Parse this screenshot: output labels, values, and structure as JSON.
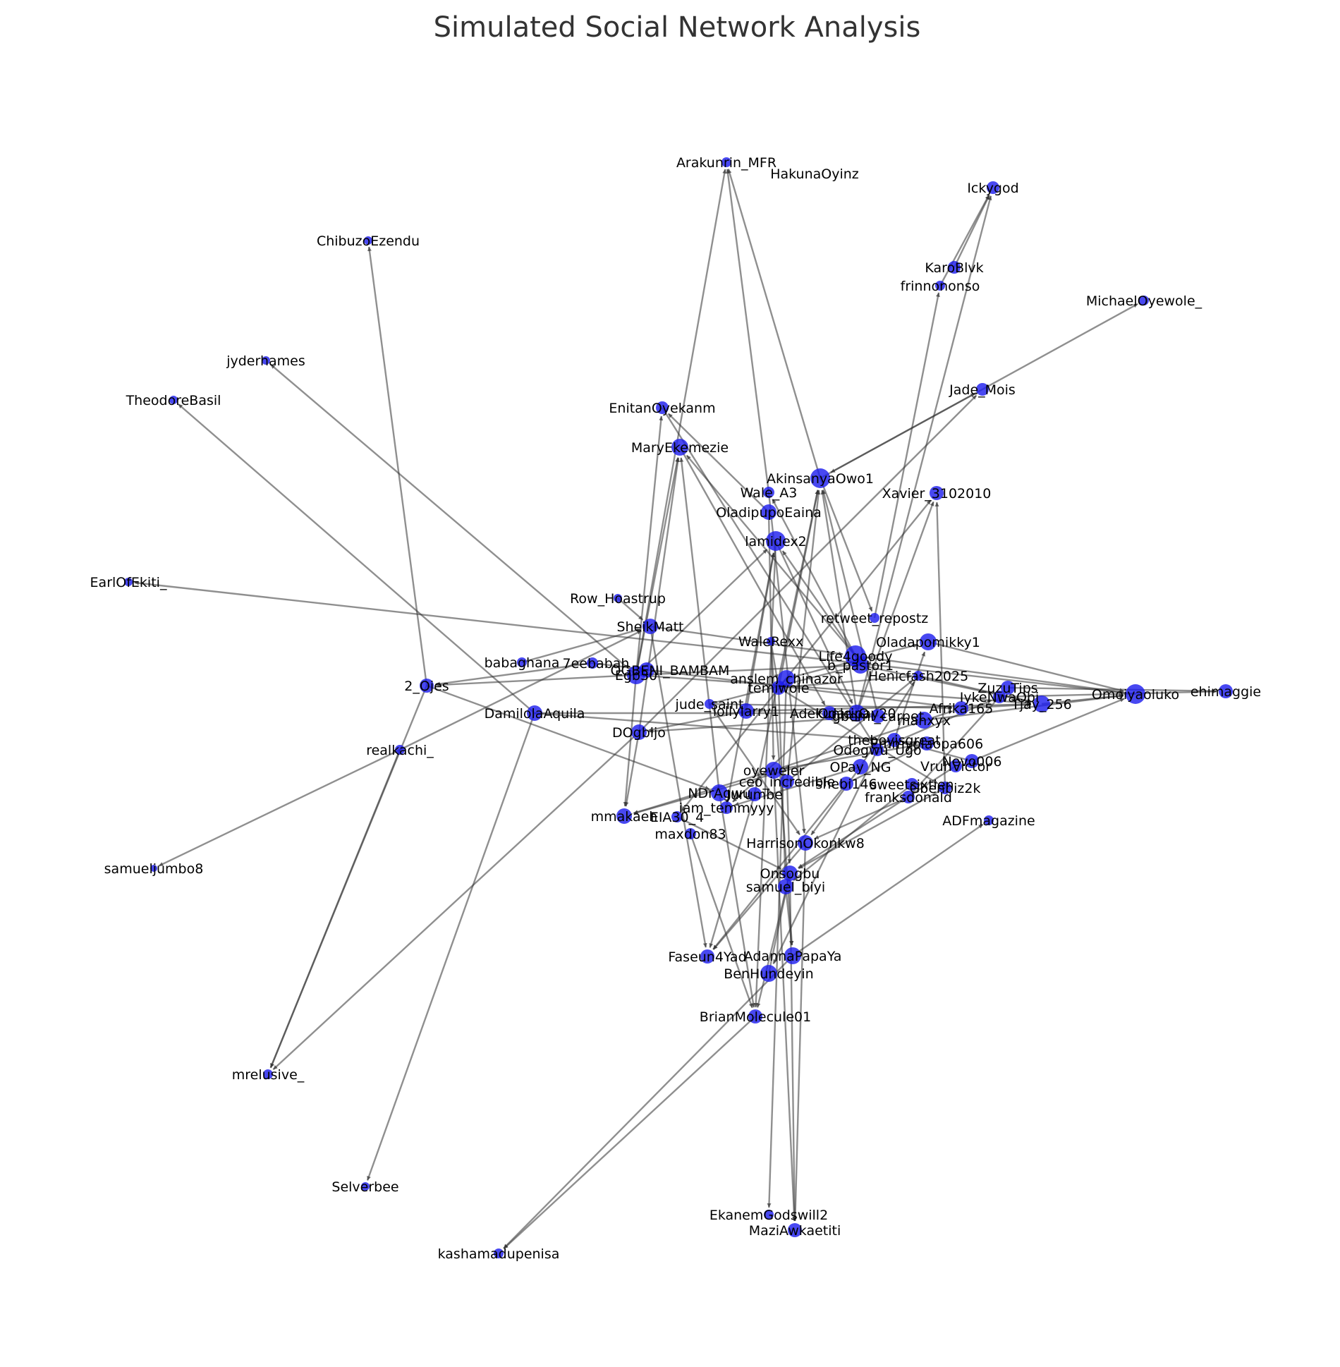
{
  "title": "Simulated Social Network Analysis",
  "colors": {
    "node": "#1a1aee",
    "edge": "#333333",
    "title": "#333333",
    "background": "#ffffff"
  },
  "nodes": [
    {
      "id": "Arakunrin_MFR"
    },
    {
      "id": "HakunaOyinz"
    },
    {
      "id": "Ickygod"
    },
    {
      "id": "ChibuzoEzendu"
    },
    {
      "id": "KaroBlvk"
    },
    {
      "id": "frinnononso"
    },
    {
      "id": "MichaelOyewole_"
    },
    {
      "id": "jyderhames"
    },
    {
      "id": "TheodoreBasil"
    },
    {
      "id": "Jade_Mois"
    },
    {
      "id": "EnitanOyekanm"
    },
    {
      "id": "MaryEkemezie"
    },
    {
      "id": "AkinsanyaOwo1"
    },
    {
      "id": "Wale_A3"
    },
    {
      "id": "Xavier_3102010"
    },
    {
      "id": "OladipupoEaina"
    },
    {
      "id": "lamidex2"
    },
    {
      "id": "EarlOfEkiti_"
    },
    {
      "id": "Row_Hoastrup"
    },
    {
      "id": "SheikMatt"
    },
    {
      "id": "retweet_repostz"
    },
    {
      "id": "WaleRexx"
    },
    {
      "id": "Oladapomikky1"
    },
    {
      "id": "babaghana"
    },
    {
      "id": "7eebabah"
    },
    {
      "id": "OGBENI_BAMBAM"
    },
    {
      "id": "Egb30"
    },
    {
      "id": "Life4goody"
    },
    {
      "id": "b_pastor1"
    },
    {
      "id": "anslem_chinazor"
    },
    {
      "id": "temiwole"
    },
    {
      "id": "Henicfash2025"
    },
    {
      "id": "IykeNwaObi"
    },
    {
      "id": "ZuzuTips"
    },
    {
      "id": "ehimaggie"
    },
    {
      "id": "Omoiyaoluko"
    },
    {
      "id": "Tjay_256"
    },
    {
      "id": "2_Ojes"
    },
    {
      "id": "DamilolaAquila"
    },
    {
      "id": "jude_saint"
    },
    {
      "id": "lollylarry1"
    },
    {
      "id": "Adekunle_O"
    },
    {
      "id": "Odaripay20"
    },
    {
      "id": "gbemi_carpet"
    },
    {
      "id": "manxyx"
    },
    {
      "id": "Afrika165"
    },
    {
      "id": "DOgbijo"
    },
    {
      "id": "theboyisgreat"
    },
    {
      "id": "Emmyolaopa606"
    },
    {
      "id": "Odogwu_Ugo"
    },
    {
      "id": "realkachi_"
    },
    {
      "id": "Nevo006"
    },
    {
      "id": "OPay_NG"
    },
    {
      "id": "VruhVictor"
    },
    {
      "id": "oyeweler"
    },
    {
      "id": "ceo_incredible"
    },
    {
      "id": "shebi146"
    },
    {
      "id": "sweetsixtien"
    },
    {
      "id": "Gbenbiz2k"
    },
    {
      "id": "franksdonald"
    },
    {
      "id": "NDrAgwu"
    },
    {
      "id": "Jurumbe"
    },
    {
      "id": "iam_temmyyy"
    },
    {
      "id": "ADFmagazine"
    },
    {
      "id": "mmakaeh"
    },
    {
      "id": "EIA30_4"
    },
    {
      "id": "maxdon83"
    },
    {
      "id": "HarrisonOkonkw8"
    },
    {
      "id": "samueljumbo8"
    },
    {
      "id": "Onsogbu"
    },
    {
      "id": "samuel_biyi"
    },
    {
      "id": "Faseun4Yad"
    },
    {
      "id": "AdannaPapaYa"
    },
    {
      "id": "BenHundeyin"
    },
    {
      "id": "BrianMolecule01"
    },
    {
      "id": "mrelusive_"
    },
    {
      "id": "Selverbee"
    },
    {
      "id": "EkanemGodswill2"
    },
    {
      "id": "MaziAwkaetiti"
    },
    {
      "id": "kashamadupenisa"
    }
  ],
  "edges": [
    [
      "Wale_A3",
      "Arakunrin_MFR"
    ],
    [
      "AkinsanyaOwo1",
      "Arakunrin_MFR"
    ],
    [
      "Egb30",
      "Arakunrin_MFR"
    ],
    [
      "KaroBlvk",
      "Ickygod"
    ],
    [
      "frinnononso",
      "Ickygod"
    ],
    [
      "Odaripay20",
      "Ickygod"
    ],
    [
      "2_Ojes",
      "ChibuzoEzendu"
    ],
    [
      "Jade_Mois",
      "MichaelOyewole_"
    ],
    [
      "Egb30",
      "jyderhames"
    ],
    [
      "DamilolaAquila",
      "TheodoreBasil"
    ],
    [
      "AkinsanyaOwo1",
      "Jade_Mois"
    ],
    [
      "Jade_Mois",
      "AkinsanyaOwo1"
    ],
    [
      "DOgbijo",
      "Jade_Mois"
    ],
    [
      "OladipupoEaina",
      "EnitanOyekanm"
    ],
    [
      "Egb30",
      "EnitanOyekanm"
    ],
    [
      "Egb30",
      "MaryEkemezie"
    ],
    [
      "Life4goody",
      "MaryEkemezie"
    ],
    [
      "DOgbijo",
      "MaryEkemezie"
    ],
    [
      "Gbenbiz2k",
      "Xavier_3102010"
    ],
    [
      "temiwole",
      "Xavier_3102010"
    ],
    [
      "retweet_repostz",
      "frinnononso"
    ],
    [
      "Odaripay20",
      "AkinsanyaOwo1"
    ],
    [
      "temiwole",
      "AkinsanyaOwo1"
    ],
    [
      "ceo_incredible",
      "AkinsanyaOwo1"
    ],
    [
      "lollylarry1",
      "lamidex2"
    ],
    [
      "Egb30",
      "lamidex2"
    ],
    [
      "iam_temmyyy",
      "lamidex2"
    ],
    [
      "Omoiyaoluko",
      "EarlOfEkiti_"
    ],
    [
      "Row_Hoastrup",
      "SheikMatt"
    ],
    [
      "AkinsanyaOwo1",
      "retweet_repostz"
    ],
    [
      "WaleRexx",
      "temiwole"
    ],
    [
      "Egb30",
      "2_Ojes"
    ],
    [
      "7eebabah",
      "2_Ojes"
    ],
    [
      "babaghana",
      "SheikMatt"
    ],
    [
      "Life4goody",
      "Omoiyaoluko"
    ],
    [
      "Oladapomikky1",
      "Omoiyaoluko"
    ],
    [
      "IykeNwaObi",
      "ehimaggie"
    ],
    [
      "ZuzuTips",
      "ehimaggie"
    ],
    [
      "Tjay_256",
      "Omoiyaoluko"
    ],
    [
      "manxyx",
      "Omoiyaoluko"
    ],
    [
      "Henicfash2025",
      "Tjay_256"
    ],
    [
      "b_pastor1",
      "Tjay_256"
    ],
    [
      "Afrika165",
      "Tjay_256"
    ],
    [
      "Nevo006",
      "Omoiyaoluko"
    ],
    [
      "DamilolaAquila",
      "Adekunle_O"
    ],
    [
      "jude_saint",
      "Afrika165"
    ],
    [
      "lollylarry1",
      "Tjay_256"
    ],
    [
      "anslem_chinazor",
      "Oladapomikky1"
    ],
    [
      "temiwole",
      "Henicfash2025"
    ],
    [
      "Egb30",
      "Tjay_256"
    ],
    [
      "7eebabah",
      "Afrika165"
    ],
    [
      "2_Ojes",
      "NDrAgwu"
    ],
    [
      "realkachi_",
      "samueljumbo8"
    ],
    [
      "realkachi_",
      "mrelusive_"
    ],
    [
      "realkachi_",
      "SheikMatt"
    ],
    [
      "2_Ojes",
      "mrelusive_"
    ],
    [
      "DOgbijo",
      "mrelusive_"
    ],
    [
      "DamilolaAquila",
      "Selverbee"
    ],
    [
      "DOgbijo",
      "mmakaeh"
    ],
    [
      "Egb30",
      "mmakaeh"
    ],
    [
      "oyeweler",
      "mmakaeh"
    ],
    [
      "theboyisgreat",
      "mmakaeh"
    ],
    [
      "OPay_NG",
      "iam_temmyyy"
    ],
    [
      "NDrAgwu",
      "MaryEkemezie"
    ],
    [
      "Jurumbe",
      "Faseun4Yad"
    ],
    [
      "maxdon83",
      "BrianMolecule01"
    ],
    [
      "SheikMatt",
      "Faseun4Yad"
    ],
    [
      "HarrisonOkonkw8",
      "Faseun4Yad"
    ],
    [
      "Onsogbu",
      "BrianMolecule01"
    ],
    [
      "samuel_biyi",
      "AdannaPapaYa"
    ],
    [
      "AdannaPapaYa",
      "ADFmagazine"
    ],
    [
      "BenHundeyin",
      "Onsogbu"
    ],
    [
      "OPay_NG",
      "HarrisonOkonkw8"
    ],
    [
      "AdannaPapaYa",
      "kashamadupenisa"
    ],
    [
      "BrianMolecule01",
      "kashamadupenisa"
    ],
    [
      "HarrisonOkonkw8",
      "MaziAwkaetiti"
    ],
    [
      "Onsogbu",
      "MaziAwkaetiti"
    ],
    [
      "oyeweler",
      "MaziAwkaetiti"
    ],
    [
      "anslem_chinazor",
      "EkanemGodswill2"
    ],
    [
      "lamidex2",
      "BrianMolecule01"
    ],
    [
      "WaleRexx",
      "AdannaPapaYa"
    ],
    [
      "sweetsixtien",
      "samuel_biyi"
    ],
    [
      "Gbenbiz2k",
      "Onsogbu"
    ],
    [
      "franksdonald",
      "HarrisonOkonkw8"
    ],
    [
      "ceo_incredible",
      "Onsogbu"
    ],
    [
      "shebi146",
      "Faseun4Yad"
    ],
    [
      "Odogwu_Ugo",
      "BenHundeyin"
    ],
    [
      "VruhVictor",
      "Onsogbu"
    ],
    [
      "EIA30_4",
      "Onsogbu"
    ],
    [
      "NDrAgwu",
      "BrianMolecule01"
    ],
    [
      "jude_saint",
      "HarrisonOkonkw8"
    ],
    [
      "lamidex2",
      "Odaripay20"
    ],
    [
      "OladipupoEaina",
      "oyeweler"
    ],
    [
      "temiwole",
      "samuel_biyi"
    ],
    [
      "b_pastor1",
      "Egb30"
    ],
    [
      "gbemi_carpet",
      "DOgbijo"
    ],
    [
      "Emmyolaopa606",
      "oyeweler"
    ],
    [
      "theboyisgreat",
      "Oladapomikky1"
    ],
    [
      "ceo_incredible",
      "Henicfash2025"
    ],
    [
      "oyeweler",
      "Afrika165"
    ],
    [
      "shebi146",
      "Emmyolaopa606"
    ],
    [
      "Odogwu_Ugo",
      "IykeNwaObi"
    ],
    [
      "OPay_NG",
      "Henicfash2025"
    ],
    [
      "franksdonald",
      "ZuzuTips"
    ],
    [
      "Nevo006",
      "theboyisgreat"
    ],
    [
      "Wale_A3",
      "HarrisonOkonkw8"
    ],
    [
      "MaryEkemezie",
      "Adekunle_O"
    ],
    [
      "Jurumbe",
      "AkinsanyaOwo1"
    ],
    [
      "lollylarry1",
      "DOgbijo"
    ],
    [
      "anslem_chinazor",
      "EIA30_4"
    ],
    [
      "Adekunle_O",
      "iam_temmyyy"
    ],
    [
      "jude_saint",
      "b_pastor1"
    ],
    [
      "b_pastor1",
      "Wale_A3"
    ],
    [
      "Life4goody",
      "lamidex2"
    ],
    [
      "temiwole",
      "Gbenbiz2k"
    ],
    [
      "EnitanOyekanm",
      "Odogwu_Ugo"
    ],
    [
      "SheikMatt",
      "Life4goody"
    ],
    [
      "DamilolaAquila",
      "Emmyolaopa606"
    ],
    [
      "gbemi_carpet",
      "AkinsanyaOwo1"
    ],
    [
      "Odaripay20",
      "Xavier_3102010"
    ]
  ]
}
